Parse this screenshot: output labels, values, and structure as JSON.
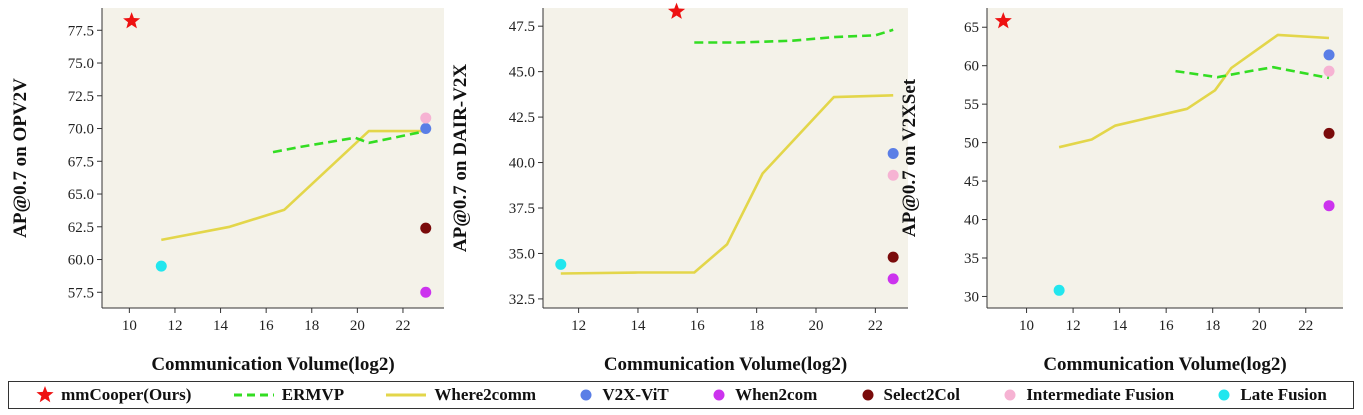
{
  "legend": [
    {
      "key": "mmcooper",
      "label": "mmCooper(Ours)",
      "marker": "star",
      "color": "#ee1111"
    },
    {
      "key": "ermvp",
      "label": "ERMVP",
      "marker": "dashed-line",
      "color": "#33dd22"
    },
    {
      "key": "where2comm",
      "label": "Where2comm",
      "marker": "solid-line",
      "color": "#e3d64a"
    },
    {
      "key": "v2xvit",
      "label": "V2X-ViT",
      "marker": "dot",
      "color": "#5a7ee6"
    },
    {
      "key": "when2com",
      "label": "When2com",
      "marker": "dot",
      "color": "#cc33ee"
    },
    {
      "key": "select2col",
      "label": "Select2Col",
      "marker": "dot",
      "color": "#7a0b0b"
    },
    {
      "key": "intermediate",
      "label": "Intermediate Fusion",
      "marker": "dot",
      "color": "#f6b3d3"
    },
    {
      "key": "late",
      "label": "Late Fusion",
      "marker": "dot",
      "color": "#22e6ee"
    }
  ],
  "chart_data": [
    {
      "type": "line",
      "xlabel": "Communication Volume(log2)",
      "ylabel": "AP@0.7 on OPV2V",
      "xlim": [
        8.8,
        23.8
      ],
      "ylim": [
        56.3,
        79.2
      ],
      "xticks": [
        10,
        12,
        14,
        16,
        18,
        20,
        22
      ],
      "yticks": [
        57.5,
        60.0,
        62.5,
        65.0,
        67.5,
        70.0,
        72.5,
        75.0,
        77.5
      ],
      "ytick_decimals": 1,
      "series": [
        {
          "key": "where2comm",
          "x": [
            11.4,
            14.4,
            16.8,
            20.5,
            23.0
          ],
          "y": [
            61.5,
            62.5,
            63.8,
            69.8,
            69.8
          ]
        },
        {
          "key": "ermvp",
          "x": [
            16.3,
            17.5,
            19.9,
            20.5,
            23.0
          ],
          "y": [
            68.2,
            68.6,
            69.3,
            68.9,
            69.8
          ]
        }
      ],
      "points": [
        {
          "key": "mmcooper",
          "x": 10.1,
          "y": 78.2
        },
        {
          "key": "v2xvit",
          "x": 23.0,
          "y": 70.0
        },
        {
          "key": "intermediate",
          "x": 23.0,
          "y": 70.8
        },
        {
          "key": "select2col",
          "x": 23.0,
          "y": 62.4
        },
        {
          "key": "when2com",
          "x": 23.0,
          "y": 57.5
        },
        {
          "key": "late",
          "x": 11.4,
          "y": 59.5
        }
      ]
    },
    {
      "type": "line",
      "xlabel": "Communication Volume(log2)",
      "ylabel": "AP@0.7 on DAIR-V2X",
      "xlim": [
        10.8,
        23.1
      ],
      "ylim": [
        32.0,
        48.5
      ],
      "xticks": [
        12,
        14,
        16,
        18,
        20,
        22
      ],
      "yticks": [
        32.5,
        35.0,
        37.5,
        40.0,
        42.5,
        45.0,
        47.5
      ],
      "ytick_decimals": 1,
      "series": [
        {
          "key": "where2comm",
          "x": [
            11.4,
            14.0,
            15.9,
            17.0,
            18.2,
            20.6,
            22.6
          ],
          "y": [
            33.9,
            33.95,
            33.95,
            35.5,
            39.4,
            43.6,
            43.7
          ]
        },
        {
          "key": "ermvp",
          "x": [
            15.9,
            17.4,
            19.2,
            20.6,
            22.0,
            22.6
          ],
          "y": [
            46.6,
            46.6,
            46.7,
            46.9,
            47.0,
            47.3
          ]
        }
      ],
      "points": [
        {
          "key": "mmcooper",
          "x": 15.3,
          "y": 48.3
        },
        {
          "key": "v2xvit",
          "x": 22.6,
          "y": 40.5
        },
        {
          "key": "intermediate",
          "x": 22.6,
          "y": 39.3
        },
        {
          "key": "select2col",
          "x": 22.6,
          "y": 34.8
        },
        {
          "key": "when2com",
          "x": 22.6,
          "y": 33.6
        },
        {
          "key": "late",
          "x": 11.4,
          "y": 34.4
        }
      ]
    },
    {
      "type": "line",
      "xlabel": "Communication Volume(log2)",
      "ylabel": "AP@0.7 on V2XSet",
      "xlim": [
        8.3,
        23.6
      ],
      "ylim": [
        28.5,
        67.5
      ],
      "xticks": [
        10,
        12,
        14,
        16,
        18,
        20,
        22
      ],
      "yticks": [
        30,
        35,
        40,
        45,
        50,
        55,
        60,
        65
      ],
      "ytick_decimals": 0,
      "series": [
        {
          "key": "where2comm",
          "x": [
            11.4,
            12.8,
            13.8,
            16.9,
            18.1,
            18.8,
            20.8,
            23.0
          ],
          "y": [
            49.4,
            50.4,
            52.2,
            54.4,
            56.8,
            59.7,
            64.0,
            63.6
          ]
        },
        {
          "key": "ermvp",
          "x": [
            16.4,
            18.2,
            19.6,
            20.6,
            23.0
          ],
          "y": [
            59.3,
            58.5,
            59.3,
            59.8,
            58.4
          ]
        }
      ],
      "points": [
        {
          "key": "mmcooper",
          "x": 9.0,
          "y": 65.8
        },
        {
          "key": "v2xvit",
          "x": 23.0,
          "y": 61.4
        },
        {
          "key": "intermediate",
          "x": 23.0,
          "y": 59.3
        },
        {
          "key": "select2col",
          "x": 23.0,
          "y": 51.2
        },
        {
          "key": "when2com",
          "x": 23.0,
          "y": 41.8
        },
        {
          "key": "late",
          "x": 11.4,
          "y": 30.8
        }
      ]
    }
  ]
}
